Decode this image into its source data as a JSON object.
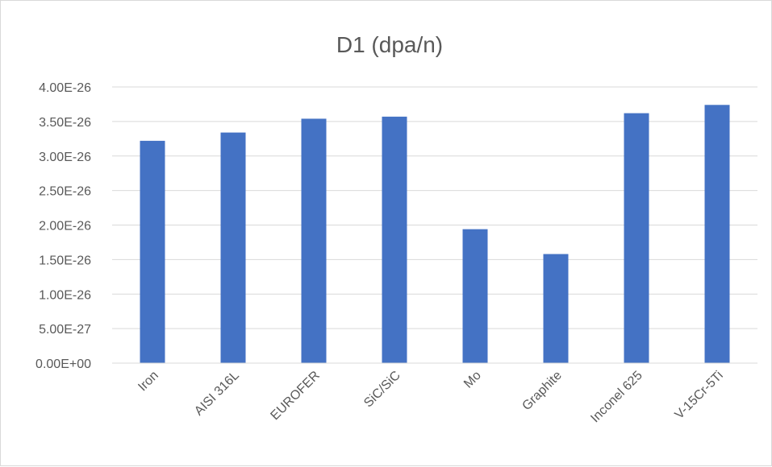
{
  "chart_data": {
    "type": "bar",
    "title": "D1 (dpa/n)",
    "xlabel": "",
    "ylabel": "",
    "categories": [
      "Iron",
      "AISI 316L",
      "EUROFER",
      "SiC/SiC",
      "Mo",
      "Graphite",
      "Inconel 625",
      "V-15Cr-5Ti"
    ],
    "values": [
      3.22e-26,
      3.34e-26,
      3.54e-26,
      3.57e-26,
      1.94e-26,
      1.58e-26,
      3.62e-26,
      3.74e-26
    ],
    "ylim": [
      0,
      4e-26
    ],
    "yticks": [
      0,
      5e-27,
      1e-26,
      1.5e-26,
      2e-26,
      2.5e-26,
      3e-26,
      3.5e-26,
      4e-26
    ],
    "ytick_labels": [
      "0.00E+00",
      "5.00E-27",
      "1.00E-26",
      "1.50E-26",
      "2.00E-26",
      "2.50E-26",
      "3.00E-26",
      "3.50E-26",
      "4.00E-26"
    ],
    "grid": true,
    "legend": "none",
    "colors": {
      "bar": "#4472c4",
      "grid": "#d9d9d9",
      "text": "#595959"
    }
  }
}
